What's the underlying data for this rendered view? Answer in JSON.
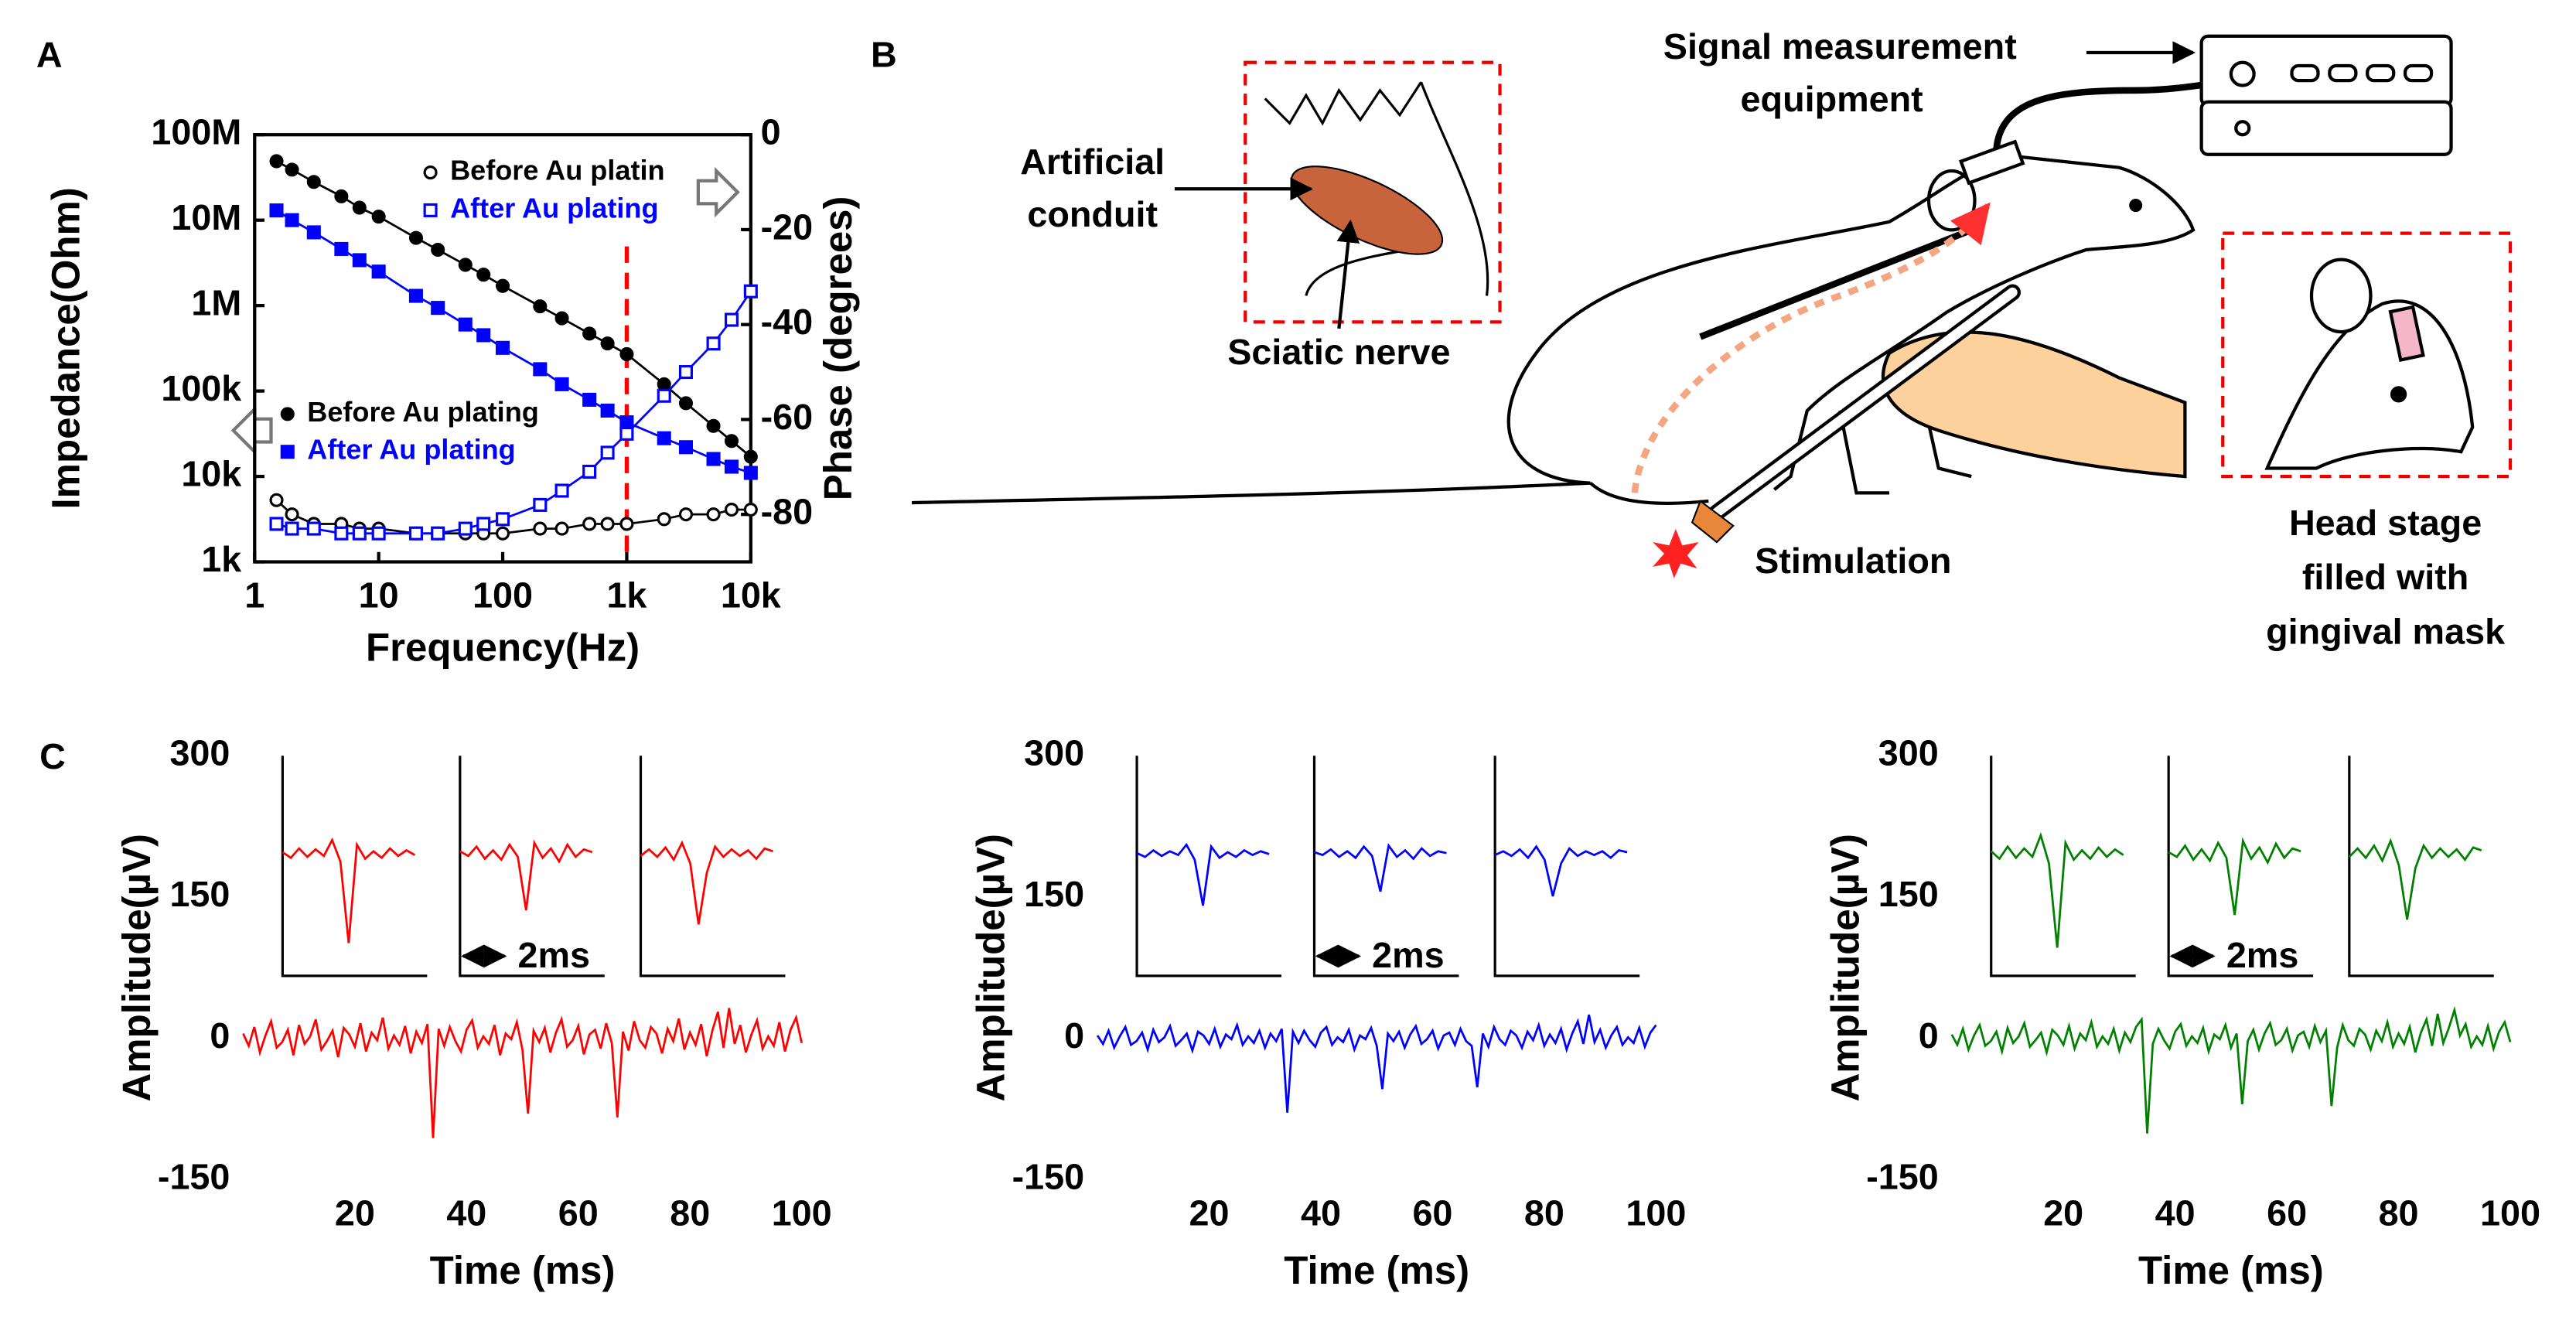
{
  "panels": [
    "A",
    "B",
    "C"
  ],
  "diagram": {
    "equipment": [
      "Signal measurement",
      "equipment"
    ],
    "conduit": [
      "Artificial",
      "conduit"
    ],
    "nerve": "Sciatic nerve",
    "stimulation": "Stimulation",
    "head_stage": [
      "Head stage",
      "filled with",
      "gingival mask"
    ]
  },
  "chart_data": [
    {
      "type": "line",
      "x_label": "Frequency(Hz)",
      "y_label": "Impedance(Ohm)",
      "y2_label": "Phase (degrees)",
      "log_x": true,
      "log_y": true,
      "x": [
        1.5,
        2,
        3,
        5,
        7,
        10,
        20,
        30,
        50,
        70,
        100,
        200,
        300,
        500,
        700,
        1000,
        2000,
        3000,
        5000,
        7000,
        10000
      ],
      "xlim": [
        1,
        10000
      ],
      "xticks": [
        1,
        10,
        100,
        {
          "value": 1000,
          "label": "1k"
        },
        {
          "value": 10000,
          "label": "10k"
        }
      ],
      "ylim": [
        1000,
        100000000
      ],
      "yticks": [
        {
          "value": 1000,
          "label": "1k"
        },
        {
          "value": 10000,
          "label": "10k"
        },
        {
          "value": 100000,
          "label": "100k"
        },
        {
          "value": 1000000,
          "label": "1M"
        },
        {
          "value": 10000000,
          "label": "10M"
        },
        {
          "value": 100000000,
          "label": "100M"
        }
      ],
      "y2lim": [
        -90,
        0
      ],
      "y2ticks": [
        0,
        -20,
        -40,
        -60,
        -80
      ],
      "vline": 1000,
      "vline_color": "#ff0000",
      "series": [
        {
          "name": "Before Au plating",
          "color": "#000000",
          "marker": "filled-circle",
          "values": [
            49000000,
            39000000,
            28000000,
            19000000,
            14000000,
            11000000,
            6200000,
            4500000,
            3000000,
            2300000,
            1700000,
            980000,
            710000,
            470000,
            360000,
            270000,
            120000,
            72000,
            39000,
            26000,
            17000
          ]
        },
        {
          "name": "After Au plating",
          "color": "#0000ff",
          "marker": "filled-square",
          "values": [
            13000000,
            10000000,
            7200000,
            4600000,
            3400000,
            2500000,
            1300000,
            940000,
            600000,
            450000,
            320000,
            180000,
            120000,
            79000,
            59000,
            43000,
            28000,
            22000,
            16000,
            13000,
            11000
          ]
        },
        {
          "name": "Before Au platin",
          "color": "#000000",
          "marker": "open-circle",
          "axis": "y2",
          "values": [
            -77,
            -80,
            -82,
            -82,
            -83,
            -83,
            -84,
            -84,
            -84,
            -84,
            -84,
            -83,
            -83,
            -82,
            -82,
            -82,
            -81,
            -80,
            -80,
            -79,
            -79
          ]
        },
        {
          "name": "After Au plating",
          "color": "#0000ff",
          "marker": "open-square",
          "axis": "y2",
          "values": [
            -82,
            -83,
            -83,
            -84,
            -84,
            -84,
            -84,
            -84,
            -83,
            -82,
            -81,
            -78,
            -75,
            -71,
            -67,
            -63,
            -55,
            -50,
            -44,
            -39,
            -33
          ]
        }
      ]
    },
    {
      "type": "line",
      "x_label": "Time (ms)",
      "y_label": "Amplitude(µV)",
      "color": "#ff0000",
      "x": [
        0,
        1,
        2,
        3,
        4,
        5,
        6,
        7,
        8,
        9,
        10,
        11,
        12,
        13,
        14,
        15,
        16,
        17,
        18,
        19,
        20,
        21,
        22,
        23,
        24,
        25,
        26,
        27,
        28,
        29,
        30,
        31,
        32,
        33,
        34,
        35,
        36,
        37,
        38,
        39,
        40,
        41,
        42,
        43,
        44,
        45,
        46,
        47,
        48,
        49,
        50,
        51,
        52,
        53,
        54,
        55,
        56,
        57,
        58,
        59,
        60,
        61,
        62,
        63,
        64,
        65,
        66,
        67,
        68,
        69,
        70,
        71,
        72,
        73,
        74,
        75,
        76,
        77,
        78,
        79,
        80,
        81,
        82,
        83,
        84,
        85,
        86,
        87,
        88,
        89,
        90,
        91,
        92,
        93,
        94,
        95,
        96,
        97,
        98,
        99,
        100
      ],
      "values": [
        5,
        -8,
        12,
        -15,
        3,
        18,
        -10,
        -4,
        9,
        -18,
        14,
        -6,
        2,
        20,
        -12,
        -3,
        8,
        -20,
        11,
        4,
        -9,
        16,
        -14,
        6,
        -2,
        22,
        -11,
        3,
        -7,
        13,
        -16,
        7,
        -5,
        15,
        -106,
        10,
        -8,
        12,
        -3,
        -14,
        9,
        19,
        -10,
        2,
        -6,
        14,
        -18,
        5,
        -1,
        17,
        -12,
        -80,
        8,
        -4,
        11,
        -15,
        6,
        20,
        -9,
        -2,
        13,
        -17,
        4,
        9,
        -11,
        16,
        -5,
        -84,
        7,
        -13,
        18,
        -2,
        -10,
        12,
        5,
        -16,
        10,
        -3,
        21,
        -12,
        6,
        -7,
        15,
        -19,
        8,
        28,
        -10,
        32,
        -6,
        14,
        -15,
        4,
        19,
        -11,
        2,
        -8,
        17,
        -14,
        9,
        22,
        -5
      ],
      "xlim": [
        0,
        100
      ],
      "xticks": [
        20,
        40,
        60,
        80,
        100
      ],
      "ylim": [
        -150,
        300
      ],
      "yticks": [
        -150,
        0,
        150,
        300
      ],
      "inset_x": [
        0,
        0.4,
        0.8,
        1.2,
        1.6,
        2,
        2.4,
        2.8,
        3.2,
        3.6,
        4,
        4.4,
        4.8,
        5.2,
        5.6,
        6,
        6.4
      ],
      "inset_xlim": [
        0,
        7
      ],
      "inset_ylim": [
        -130,
        105
      ],
      "insets": [
        {
          "values": [
            2,
            -4,
            6,
            -3,
            5,
            -2,
            15,
            -8,
            -95,
            10,
            -5,
            3,
            -4,
            6,
            -2,
            4,
            -1
          ]
        },
        {
          "values": [
            3,
            -2,
            8,
            -5,
            4,
            -6,
            10,
            -3,
            -60,
            12,
            -4,
            6,
            -8,
            10,
            -3,
            5,
            2
          ]
        },
        {
          "values": [
            -2,
            5,
            -3,
            7,
            -6,
            12,
            -10,
            -75,
            -20,
            8,
            -3,
            5,
            -2,
            4,
            -5,
            6,
            3
          ]
        }
      ],
      "scalebar": {
        "value": 2,
        "label": "2ms"
      }
    },
    {
      "type": "line",
      "x_label": "Time (ms)",
      "y_label": "Amplitude(µV)",
      "color": "#0000ff",
      "x": [
        0,
        1,
        2,
        3,
        4,
        5,
        6,
        7,
        8,
        9,
        10,
        11,
        12,
        13,
        14,
        15,
        16,
        17,
        18,
        19,
        20,
        21,
        22,
        23,
        24,
        25,
        26,
        27,
        28,
        29,
        30,
        31,
        32,
        33,
        34,
        35,
        36,
        37,
        38,
        39,
        40,
        41,
        42,
        43,
        44,
        45,
        46,
        47,
        48,
        49,
        50,
        51,
        52,
        53,
        54,
        55,
        56,
        57,
        58,
        59,
        60,
        61,
        62,
        63,
        64,
        65,
        66,
        67,
        68,
        69,
        70,
        71,
        72,
        73,
        74,
        75,
        76,
        77,
        78,
        79,
        80,
        81,
        82,
        83,
        84,
        85,
        86,
        87,
        88,
        89,
        90,
        91,
        92,
        93,
        94,
        95,
        96,
        97,
        98,
        99,
        100
      ],
      "values": [
        3,
        -6,
        8,
        -10,
        2,
        12,
        -7,
        -3,
        6,
        -12,
        9,
        -4,
        1,
        13,
        -8,
        -2,
        5,
        -13,
        7,
        3,
        -6,
        10,
        -9,
        4,
        -1,
        14,
        -7,
        2,
        -5,
        8,
        -10,
        5,
        -3,
        10,
        -79,
        7,
        -5,
        8,
        -2,
        -9,
        6,
        12,
        -7,
        1,
        -4,
        9,
        -12,
        3,
        -1,
        11,
        -8,
        -54,
        5,
        -3,
        7,
        -10,
        4,
        13,
        -6,
        -1,
        8,
        -11,
        3,
        6,
        -7,
        10,
        -3,
        -8,
        -52,
        5,
        -9,
        12,
        -1,
        -7,
        8,
        3,
        -10,
        7,
        -2,
        14,
        -8,
        4,
        -5,
        10,
        -12,
        5,
        18,
        -6,
        25,
        -4,
        9,
        -10,
        3,
        12,
        -7,
        1,
        -5,
        11,
        -9,
        6,
        14
      ],
      "xlim": [
        0,
        100
      ],
      "xticks": [
        20,
        40,
        60,
        80,
        100
      ],
      "ylim": [
        -150,
        300
      ],
      "yticks": [
        -150,
        0,
        150,
        300
      ],
      "inset_x": [
        0,
        0.4,
        0.8,
        1.2,
        1.6,
        2,
        2.4,
        2.8,
        3.2,
        3.6,
        4,
        4.4,
        4.8,
        5.2,
        5.6,
        6,
        6.4
      ],
      "inset_xlim": [
        0,
        7
      ],
      "inset_ylim": [
        -130,
        105
      ],
      "insets": [
        {
          "values": [
            1,
            -3,
            4,
            -2,
            3,
            -1,
            10,
            -6,
            -55,
            8,
            -4,
            2,
            -3,
            4,
            -1,
            3,
            0
          ]
        },
        {
          "values": [
            2,
            -1,
            5,
            -3,
            3,
            -4,
            8,
            -2,
            -40,
            9,
            -3,
            4,
            -5,
            6,
            -2,
            3,
            1
          ]
        },
        {
          "values": [
            -1,
            3,
            -2,
            5,
            -4,
            8,
            -6,
            -45,
            -10,
            6,
            -2,
            3,
            -1,
            3,
            -4,
            4,
            2
          ]
        }
      ],
      "scalebar": {
        "value": 2,
        "label": "2ms"
      }
    },
    {
      "type": "line",
      "x_label": "Time (ms)",
      "y_label": "Amplitude(µV)",
      "color": "#008000",
      "x": [
        0,
        1,
        2,
        3,
        4,
        5,
        6,
        7,
        8,
        9,
        10,
        11,
        12,
        13,
        14,
        15,
        16,
        17,
        18,
        19,
        20,
        21,
        22,
        23,
        24,
        25,
        26,
        27,
        28,
        29,
        30,
        31,
        32,
        33,
        34,
        35,
        36,
        37,
        38,
        39,
        40,
        41,
        42,
        43,
        44,
        45,
        46,
        47,
        48,
        49,
        50,
        51,
        52,
        53,
        54,
        55,
        56,
        57,
        58,
        59,
        60,
        61,
        62,
        63,
        64,
        65,
        66,
        67,
        68,
        69,
        70,
        71,
        72,
        73,
        74,
        75,
        76,
        77,
        78,
        79,
        80,
        81,
        82,
        83,
        84,
        85,
        86,
        87,
        88,
        89,
        90,
        91,
        92,
        93,
        94,
        95,
        96,
        97,
        98,
        99,
        100
      ],
      "values": [
        4,
        -7,
        10,
        -12,
        3,
        14,
        -8,
        -3,
        7,
        -14,
        11,
        -5,
        2,
        16,
        -9,
        -2,
        6,
        -15,
        9,
        3,
        -7,
        13,
        -11,
        5,
        -2,
        17,
        -9,
        2,
        -6,
        10,
        -13,
        6,
        -4,
        12,
        20,
        -101,
        -6,
        10,
        -2,
        -11,
        7,
        15,
        -8,
        2,
        -5,
        11,
        -14,
        4,
        -1,
        14,
        -10,
        5,
        -70,
        -3,
        9,
        -12,
        5,
        16,
        -7,
        -2,
        10,
        -13,
        3,
        7,
        -9,
        13,
        -4,
        8,
        -72,
        -10,
        14,
        -2,
        -8,
        10,
        4,
        -12,
        8,
        -3,
        17,
        -9,
        5,
        -6,
        12,
        -15,
        6,
        20,
        -8,
        26,
        -5,
        11,
        30,
        3,
        15,
        -9,
        2,
        -7,
        13,
        -11,
        7,
        17,
        -4
      ],
      "xlim": [
        0,
        100
      ],
      "xticks": [
        20,
        40,
        60,
        80,
        100
      ],
      "ylim": [
        -150,
        300
      ],
      "yticks": [
        -150,
        0,
        150,
        300
      ],
      "inset_x": [
        0,
        0.4,
        0.8,
        1.2,
        1.6,
        2,
        2.4,
        2.8,
        3.2,
        3.6,
        4,
        4.4,
        4.8,
        5.2,
        5.6,
        6,
        6.4
      ],
      "inset_xlim": [
        0,
        7
      ],
      "inset_ylim": [
        -130,
        105
      ],
      "insets": [
        {
          "values": [
            3,
            -5,
            8,
            -4,
            6,
            -3,
            20,
            -10,
            -100,
            12,
            -6,
            4,
            -5,
            7,
            -3,
            5,
            -1
          ]
        },
        {
          "values": [
            2,
            -3,
            9,
            -6,
            5,
            -7,
            12,
            -4,
            -65,
            14,
            -5,
            7,
            -9,
            11,
            -4,
            6,
            3
          ]
        },
        {
          "values": [
            -3,
            6,
            -4,
            9,
            -7,
            14,
            -12,
            -70,
            -15,
            9,
            -4,
            6,
            -3,
            5,
            -6,
            7,
            4
          ]
        }
      ],
      "scalebar": {
        "value": 2,
        "label": "2ms"
      }
    }
  ]
}
